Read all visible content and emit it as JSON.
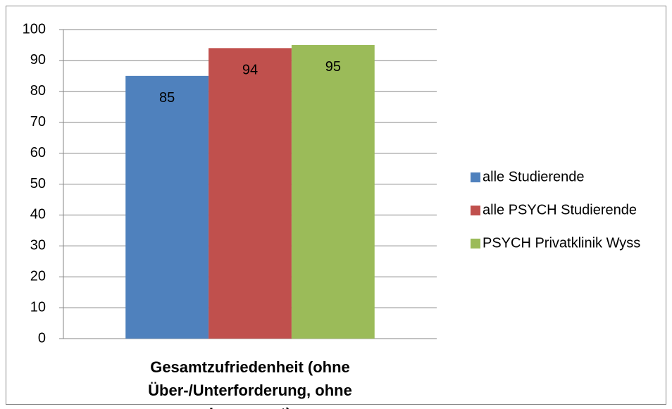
{
  "chart_data": {
    "type": "bar",
    "categories": [
      "Gesamtzufriedenheit (ohne Über-/Unterforderung, ohne Insgesamt)"
    ],
    "series": [
      {
        "name": "alle Studierende",
        "color": "#4f81bd",
        "values": [
          85
        ]
      },
      {
        "name": "alle PSYCH Studierende",
        "color": "#c0504d",
        "values": [
          94
        ]
      },
      {
        "name": "PSYCH Privatklinik Wyss",
        "color": "#9bbb59",
        "values": [
          95
        ]
      }
    ],
    "ylim": [
      0,
      100
    ],
    "yticks": [
      0,
      10,
      20,
      30,
      40,
      50,
      60,
      70,
      80,
      90,
      100
    ],
    "grid": true,
    "legend": "right"
  }
}
